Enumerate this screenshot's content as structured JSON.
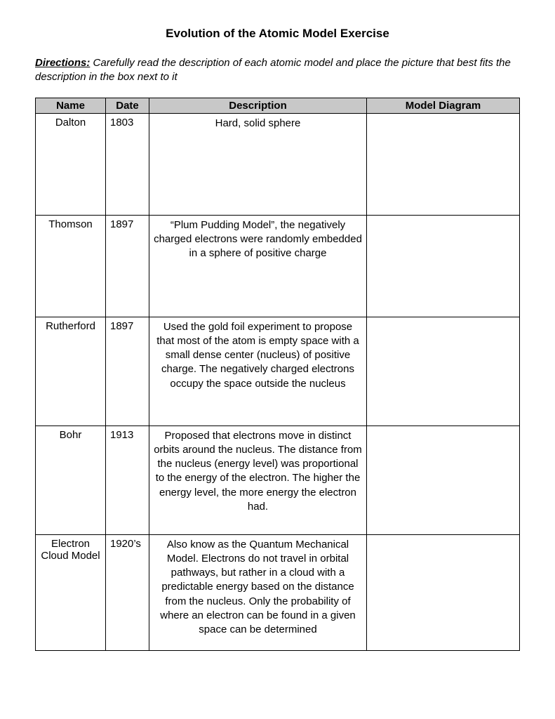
{
  "title": "Evolution of the Atomic Model Exercise",
  "directions_label": "Directions:",
  "directions_body": "Carefully read the description of each atomic model and place the picture that best fits the description in the box next to it",
  "columns": {
    "name": "Name",
    "date": "Date",
    "description": "Description",
    "diagram": "Model Diagram"
  },
  "rows": [
    {
      "name": "Dalton",
      "date": "1803",
      "description": "Hard, solid sphere"
    },
    {
      "name": "Thomson",
      "date": "1897",
      "description": "“Plum Pudding Model”, the negatively charged electrons were randomly embedded in a sphere of positive charge"
    },
    {
      "name": "Rutherford",
      "date": "1897",
      "description": "Used the gold foil experiment to propose that most of the atom is empty space with a small dense center (nucleus) of positive charge.  The negatively charged electrons occupy the space outside the nucleus"
    },
    {
      "name": "Bohr",
      "date": "1913",
      "description": "Proposed that electrons move in distinct orbits around the nucleus.  The distance from the nucleus (energy level) was proportional to the energy of the electron.  The higher the energy level, the more energy the electron had."
    },
    {
      "name": "Electron Cloud Model",
      "date": "1920’s",
      "description": "Also know as the Quantum Mechanical Model.  Electrons do not travel in orbital pathways, but rather in a cloud with a predictable energy based on the distance from the nucleus.  Only the probability of where an electron can be found in a given space can be determined"
    }
  ],
  "colors": {
    "header_bg": "#c8c8c8",
    "border": "#000000",
    "text": "#000000",
    "page_bg": "#ffffff"
  },
  "typography": {
    "font_family": "Comic Sans MS",
    "title_fontsize_pt": 13,
    "body_fontsize_pt": 11
  }
}
